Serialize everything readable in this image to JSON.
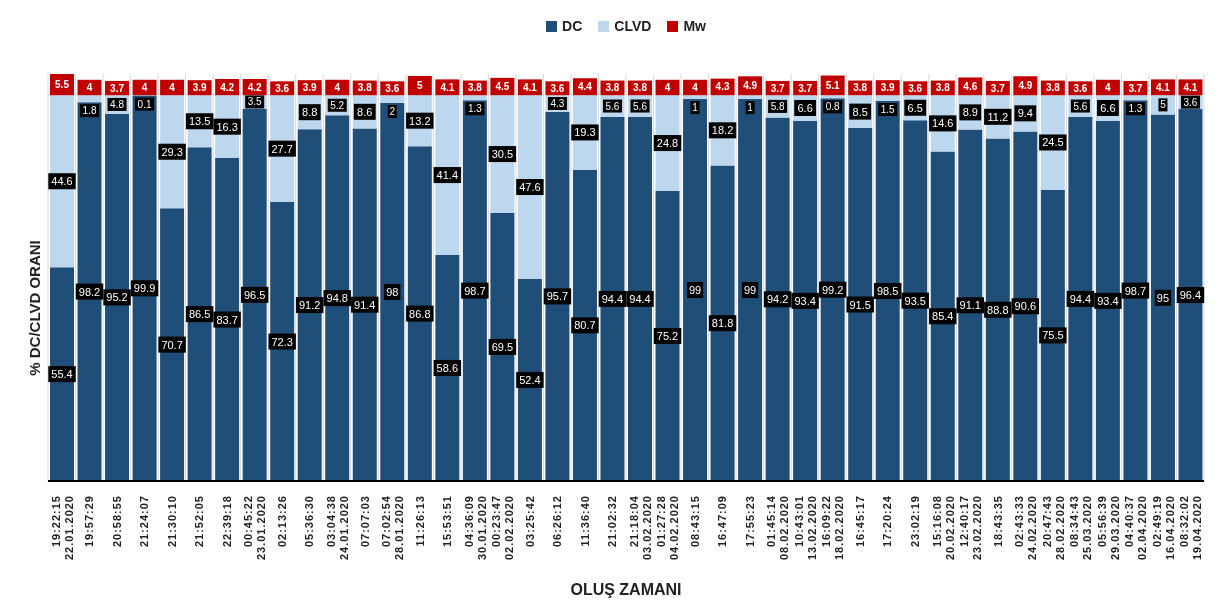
{
  "chart_data": {
    "type": "bar",
    "stacked": true,
    "data_labels": true,
    "grid": "x",
    "legend": "top",
    "ylabel": "% DC/CLVD ORANI",
    "xlabel": "OLUŞ ZAMANI",
    "categories": [
      "19:22:15\n22.01.2020",
      "19:57:29",
      "20:58:55",
      "21:24:07",
      "21:30:10",
      "21:52:05",
      "22:39:18",
      "00:45:22\n23.01.2020",
      "02:13:26",
      "05:36:30",
      "03:04:38\n24.01.2020",
      "07:07:03",
      "07:02:54\n28.01.2020",
      "11:26:13",
      "15:53:51",
      "04:36:09\n30.01.2020",
      "00:23:47\n02.02.2020",
      "03:25:42",
      "06:26:12",
      "11:36:40",
      "21:02:32",
      "21:18:04\n03.02.2020",
      "01:27:28\n04.02.2020",
      "08:43:15",
      "16:47:09",
      "17:55:23",
      "01:45:14\n08.02.2020",
      "10:43:01\n13.02.2020",
      "16:09:22\n18.02.2020",
      "16:45:17",
      "17:20:24",
      "23:02:19",
      "15:16:08\n20.02.2020",
      "12:40:17\n23.02.2020",
      "18:43:35",
      "02:43:33\n24.02.2020",
      "20:47:43\n28.02.2020",
      "08:34:43\n25.03.2020",
      "05:56:39\n29.03.2020",
      "04:40:37\n02.04.2020",
      "02:49:19\n16.04.2020",
      "08:32:02\n19.04.2020"
    ],
    "series": [
      {
        "name": "DC",
        "color": "#1f4e79",
        "values": [
          55.4,
          98.2,
          95.2,
          99.9,
          70.7,
          86.5,
          83.7,
          96.5,
          72.3,
          91.2,
          94.8,
          91.4,
          98,
          86.8,
          58.6,
          98.7,
          69.5,
          52.4,
          95.7,
          80.7,
          94.4,
          94.4,
          75.2,
          99,
          81.8,
          99,
          94.2,
          93.4,
          99.2,
          91.5,
          98.5,
          93.5,
          85.4,
          91.1,
          88.8,
          90.6,
          75.5,
          94.4,
          93.4,
          98.7,
          95,
          96.4
        ]
      },
      {
        "name": "CLVD",
        "color": "#bdd7ee",
        "values": [
          44.6,
          1.8,
          4.8,
          0.1,
          29.3,
          13.5,
          16.3,
          3.5,
          27.7,
          8.8,
          5.2,
          8.6,
          2,
          13.2,
          41.4,
          1.3,
          30.5,
          47.6,
          4.3,
          19.3,
          5.6,
          5.6,
          24.8,
          1,
          18.2,
          1,
          5.8,
          6.6,
          0.8,
          8.5,
          1.5,
          6.5,
          14.6,
          8.9,
          11.2,
          9.4,
          24.5,
          5.6,
          6.6,
          1.3,
          5,
          3.6
        ]
      },
      {
        "name": "Mw",
        "color": "#c00000",
        "values": [
          5.5,
          4,
          3.7,
          4,
          4,
          3.9,
          4.2,
          4.2,
          3.6,
          3.9,
          4,
          3.8,
          3.6,
          5,
          4.1,
          3.8,
          4.5,
          4.1,
          3.6,
          4.4,
          3.8,
          3.8,
          4,
          4,
          4.3,
          4.9,
          3.7,
          3.7,
          5.1,
          3.8,
          3.9,
          3.6,
          3.8,
          4.6,
          3.7,
          4.9,
          3.8,
          3.6,
          4,
          3.7,
          4.1,
          4.1
        ]
      }
    ]
  }
}
